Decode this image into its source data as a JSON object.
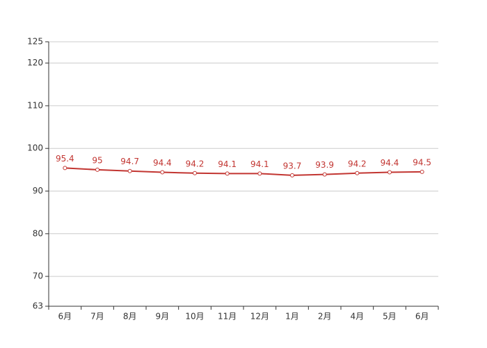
{
  "chart_data": {
    "type": "line",
    "categories": [
      "6月",
      "7月",
      "8月",
      "9月",
      "10月",
      "11月",
      "12月",
      "1月",
      "2月",
      "4月",
      "5月",
      "6月"
    ],
    "series": [
      {
        "name": null,
        "color": "#c23531",
        "values": [
          95.4,
          95,
          94.7,
          94.4,
          94.2,
          94.1,
          94.1,
          93.7,
          93.9,
          94.2,
          94.4,
          94.5
        ]
      }
    ],
    "ylim": [
      63,
      125
    ],
    "yticks": [
      63,
      70,
      80,
      90,
      100,
      110,
      120,
      125
    ],
    "grid": true,
    "data_labels": true
  }
}
